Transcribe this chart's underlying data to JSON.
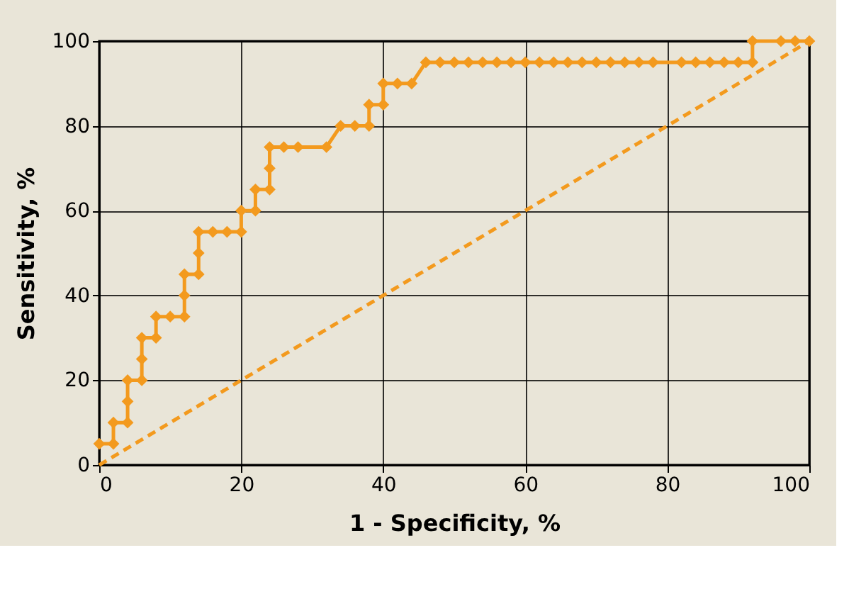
{
  "chart_data": {
    "type": "line",
    "xlabel": "1 - Specificity, %",
    "ylabel": "Sensitivity, %",
    "xlim": [
      0,
      100
    ],
    "ylim": [
      0,
      100
    ],
    "xticks": [
      0,
      20,
      40,
      60,
      80,
      100
    ],
    "yticks": [
      0,
      20,
      40,
      60,
      80,
      100
    ],
    "grid": true,
    "series": [
      {
        "color": "#f39a1e",
        "marker": "diamond",
        "line_style": "solid",
        "x": [
          0,
          2,
          2,
          4,
          4,
          4,
          6,
          6,
          6,
          8,
          8,
          10,
          12,
          12,
          12,
          14,
          14,
          14,
          16,
          18,
          20,
          20,
          22,
          22,
          24,
          24,
          24,
          26,
          28,
          32,
          34,
          36,
          38,
          38,
          40,
          40,
          42,
          44,
          46,
          48,
          50,
          52,
          54,
          56,
          58,
          60,
          62,
          64,
          66,
          68,
          70,
          72,
          74,
          76,
          78,
          82,
          84,
          86,
          88,
          90,
          92,
          92,
          96,
          98,
          100
        ],
        "values": [
          5,
          5,
          10,
          10,
          15,
          20,
          20,
          25,
          30,
          30,
          35,
          35,
          35,
          40,
          45,
          45,
          50,
          55,
          55,
          55,
          55,
          60,
          60,
          65,
          65,
          70,
          75,
          75,
          75,
          75,
          80,
          80,
          80,
          85,
          85,
          90,
          90,
          90,
          95,
          95,
          95,
          95,
          95,
          95,
          95,
          95,
          95,
          95,
          95,
          95,
          95,
          95,
          95,
          95,
          95,
          95,
          95,
          95,
          95,
          95,
          95,
          100,
          100,
          100,
          100
        ]
      },
      {
        "color": "#f39a1e",
        "marker": "none",
        "line_style": "dashed",
        "x": [
          0,
          100
        ],
        "values": [
          0,
          100
        ]
      }
    ]
  }
}
